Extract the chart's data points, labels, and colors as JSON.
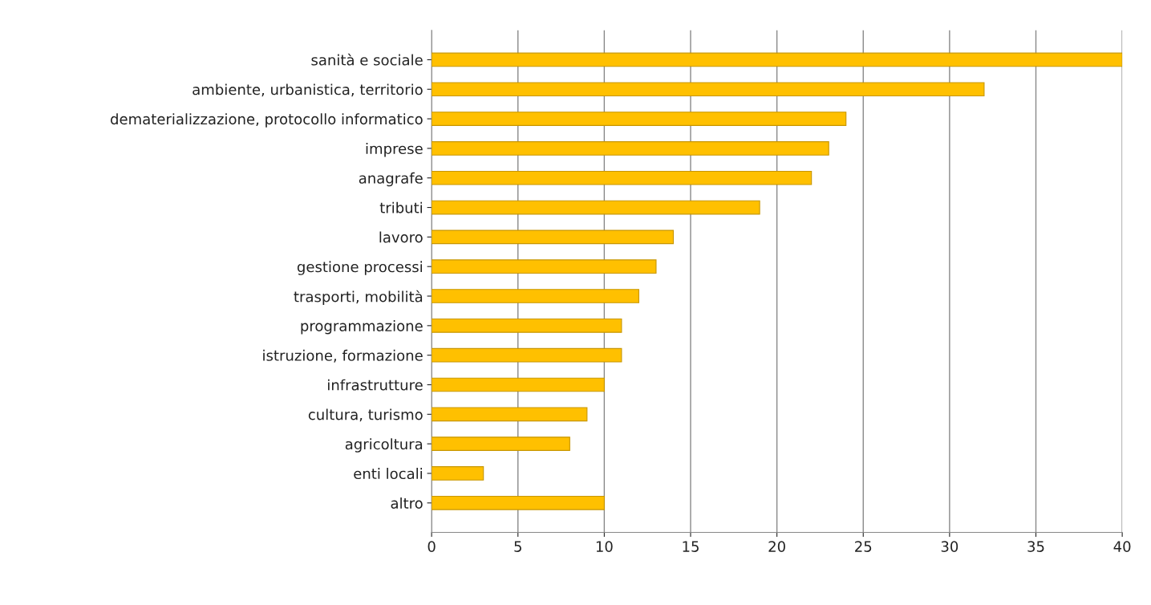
{
  "chart_data": {
    "type": "bar",
    "orientation": "horizontal",
    "categories": [
      "sanità e sociale",
      "ambiente, urbanistica, territorio",
      "dematerializzazione, protocollo informatico",
      "imprese",
      "anagrafe",
      "tributi",
      "lavoro",
      "gestione processi",
      "trasporti, mobilità",
      "programmazione",
      "istruzione, formazione",
      "infrastrutture",
      "cultura, turismo",
      "agricoltura",
      "enti locali",
      "altro"
    ],
    "values": [
      40,
      32,
      24,
      23,
      22,
      19,
      14,
      13,
      12,
      11,
      11,
      10,
      9,
      8,
      3,
      10
    ],
    "color": "#ffc000",
    "xlim": [
      0,
      40
    ],
    "xticks": [
      0,
      5,
      10,
      15,
      20,
      25,
      30,
      35,
      40
    ],
    "grid": "x"
  }
}
